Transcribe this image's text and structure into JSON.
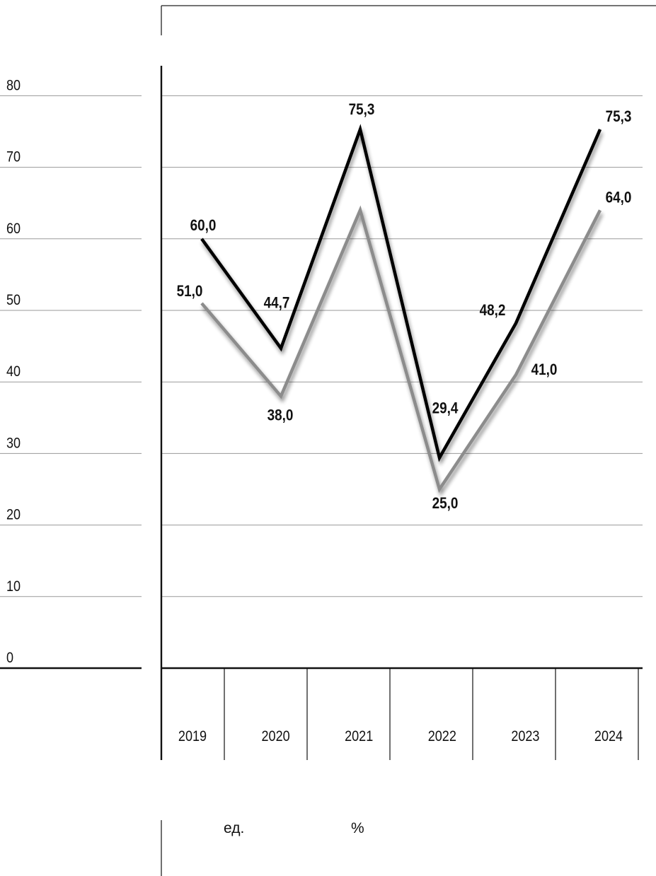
{
  "chart_data": {
    "type": "line",
    "categories": [
      "2019",
      "2020",
      "2021",
      "2022",
      "2023",
      "2024"
    ],
    "series": [
      {
        "name": "ед.",
        "values": [
          51.0,
          38.0,
          64.0,
          25.0,
          41.0,
          64.0
        ],
        "labels": [
          "51,0",
          "38,0",
          "",
          "25,0",
          "41,0",
          "64,0"
        ],
        "color": "#8c8c8c"
      },
      {
        "name": "%",
        "values": [
          60.0,
          44.7,
          75.3,
          29.4,
          48.2,
          75.3
        ],
        "labels": [
          "60,0",
          "44,7",
          "75,3",
          "29,4",
          "48,2",
          "75,3"
        ],
        "color": "#000000"
      }
    ],
    "ylim": [
      0,
      80
    ],
    "yticks": [
      "0",
      "10",
      "20",
      "30",
      "40",
      "50",
      "60",
      "70",
      "80"
    ],
    "grid": true,
    "legend_position": "bottom"
  }
}
